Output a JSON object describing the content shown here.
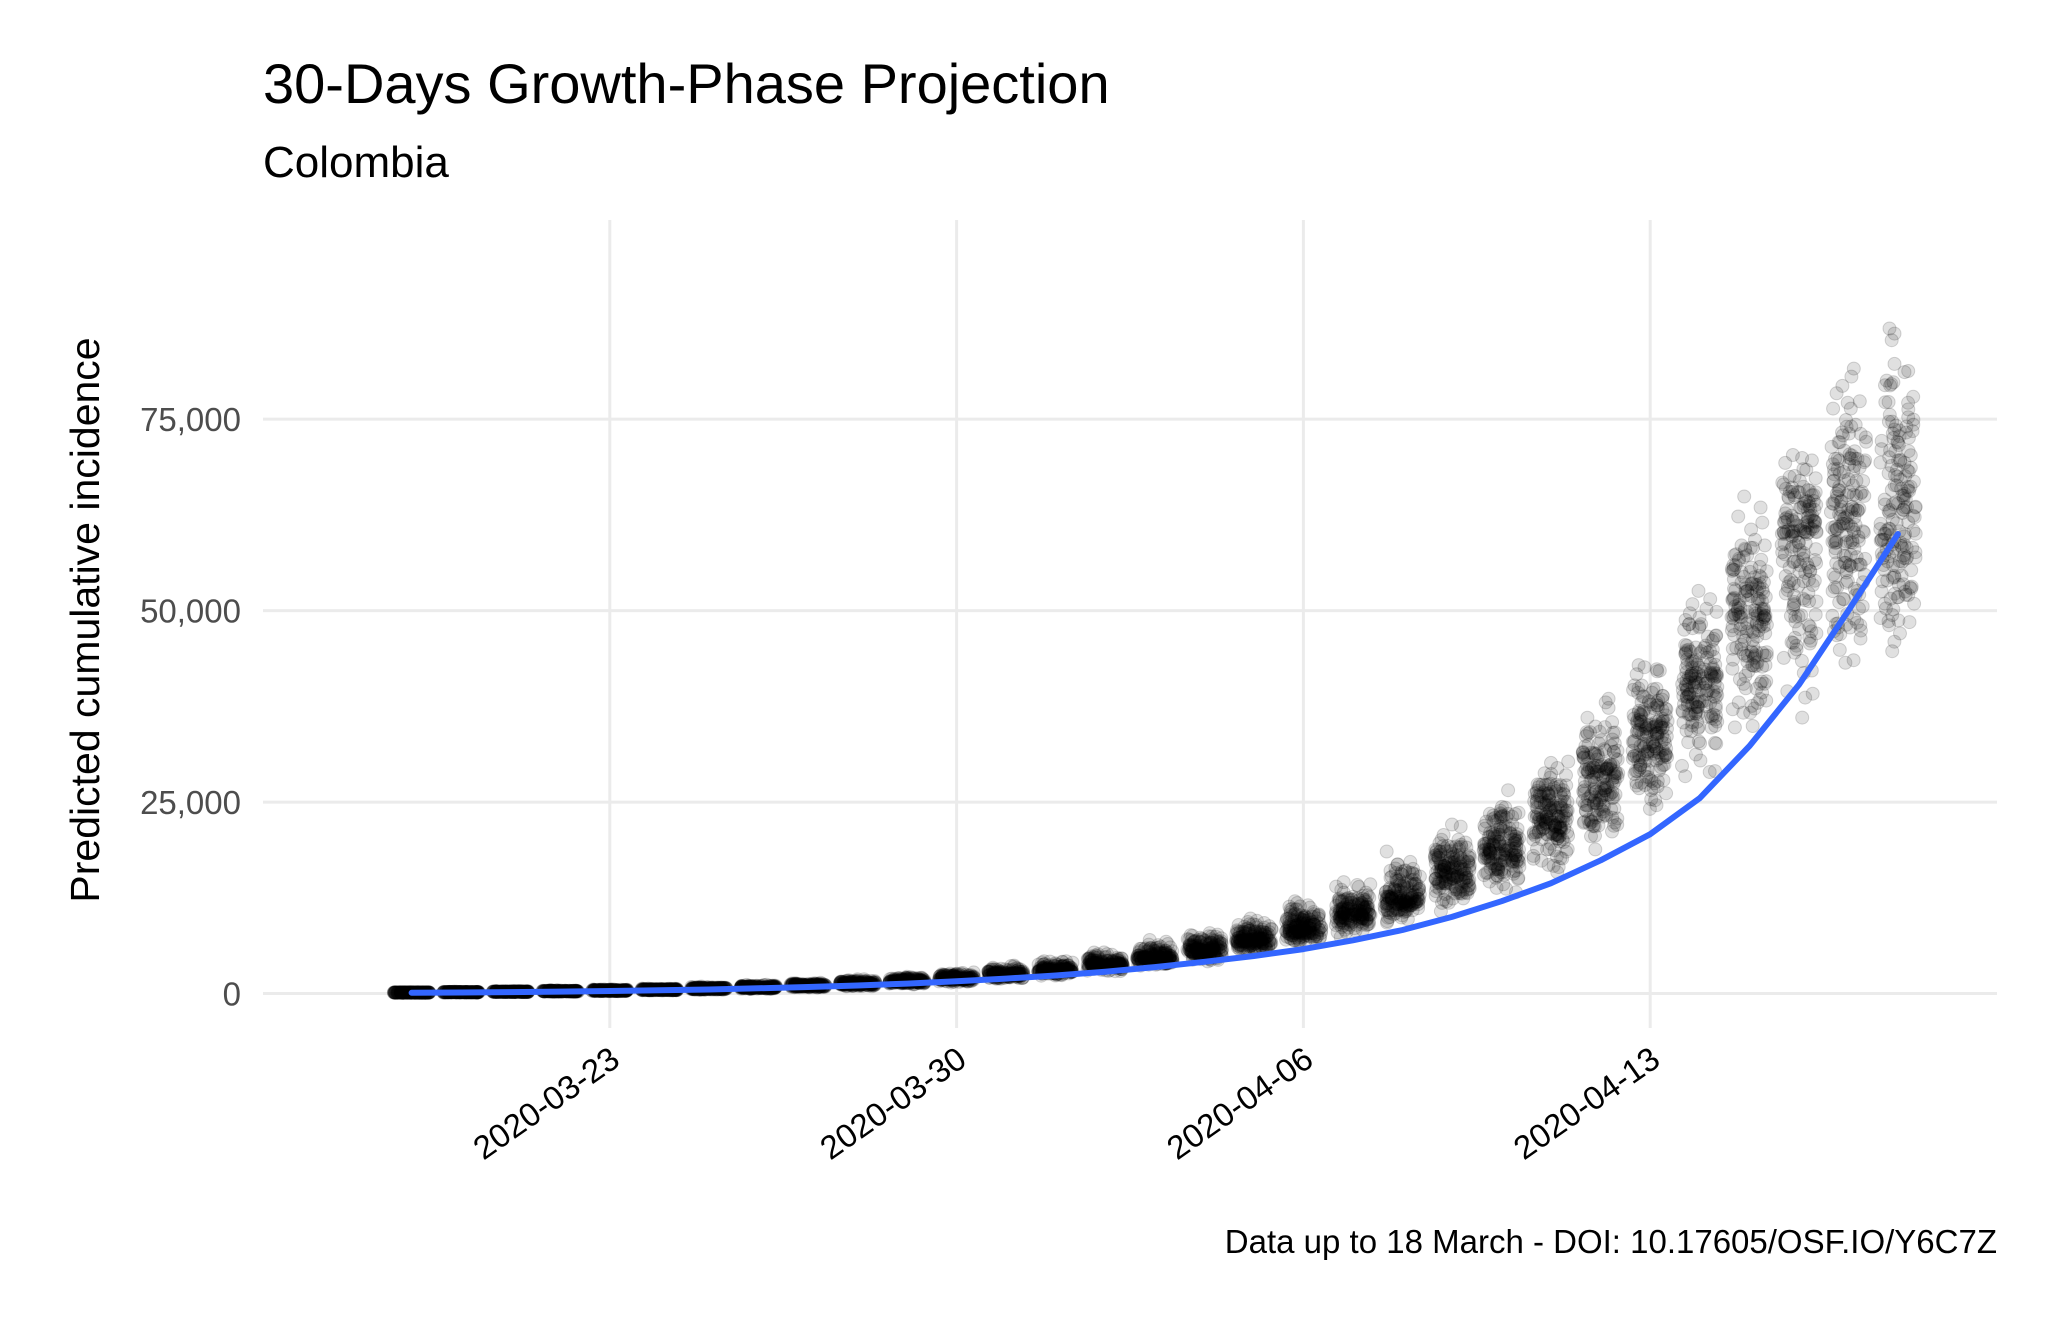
{
  "chart_data": {
    "type": "scatter",
    "title": "30-Days Growth-Phase Projection",
    "subtitle": "Colombia",
    "xlabel": "",
    "ylabel": "Predicted cumulative incidence",
    "caption": "Data up to 18 March - DOI: 10.17605/OSF.IO/Y6C7Z",
    "x_axis": {
      "kind": "date",
      "range": [
        "2020-03-16",
        "2020-04-20"
      ],
      "ticks": [
        {
          "value": "2020-03-23",
          "label": "2020-03-23"
        },
        {
          "value": "2020-03-30",
          "label": "2020-03-30"
        },
        {
          "value": "2020-04-06",
          "label": "2020-04-06"
        },
        {
          "value": "2020-04-13",
          "label": "2020-04-13"
        }
      ]
    },
    "y_axis": {
      "range": [
        -4500,
        101000
      ],
      "ticks": [
        {
          "value": 0,
          "label": "0"
        },
        {
          "value": 25000,
          "label": "25,000"
        },
        {
          "value": 50000,
          "label": "50,000"
        },
        {
          "value": 75000,
          "label": "75,000"
        }
      ]
    },
    "grid": true,
    "legend": "none",
    "series": [
      {
        "kind": "points",
        "color": "#000000",
        "opacity": 0.12,
        "dates": [
          "2020-03-19",
          "2020-03-20",
          "2020-03-21",
          "2020-03-22",
          "2020-03-23",
          "2020-03-24",
          "2020-03-25",
          "2020-03-26",
          "2020-03-27",
          "2020-03-28",
          "2020-03-29",
          "2020-03-30",
          "2020-03-31",
          "2020-04-01",
          "2020-04-02",
          "2020-04-03",
          "2020-04-04",
          "2020-04-05",
          "2020-04-06",
          "2020-04-07",
          "2020-04-08",
          "2020-04-09",
          "2020-04-10",
          "2020-04-11",
          "2020-04-12",
          "2020-04-13",
          "2020-04-14",
          "2020-04-15",
          "2020-04-16",
          "2020-04-17",
          "2020-04-18"
        ],
        "center": [
          128,
          175,
          230,
          300,
          390,
          500,
          640,
          810,
          1020,
          1280,
          1600,
          2000,
          2480,
          3070,
          3780,
          4660,
          5730,
          7020,
          8590,
          10500,
          12800,
          15600,
          19000,
          23100,
          28000,
          33900,
          40900,
          49500,
          60000,
          62000,
          63000
        ],
        "min": [
          100,
          120,
          170,
          220,
          280,
          360,
          450,
          560,
          700,
          880,
          1100,
          1350,
          1700,
          2100,
          2600,
          3200,
          4000,
          4900,
          5900,
          7100,
          8500,
          10000,
          12000,
          14500,
          17500,
          20500,
          24500,
          28500,
          33000,
          36000,
          39000
        ],
        "max": [
          160,
          240,
          330,
          430,
          560,
          720,
          920,
          1180,
          1500,
          1900,
          2400,
          3000,
          3700,
          4600,
          5700,
          7000,
          8600,
          10500,
          12800,
          15500,
          18700,
          22500,
          27000,
          32500,
          39000,
          46000,
          55000,
          65000,
          74000,
          88000,
          92000
        ]
      },
      {
        "kind": "line",
        "color": "#3366ff",
        "dates": [
          "2020-03-19",
          "2020-03-20",
          "2020-03-21",
          "2020-03-22",
          "2020-03-23",
          "2020-03-24",
          "2020-03-25",
          "2020-03-26",
          "2020-03-27",
          "2020-03-28",
          "2020-03-29",
          "2020-03-30",
          "2020-03-31",
          "2020-04-01",
          "2020-04-02",
          "2020-04-03",
          "2020-04-04",
          "2020-04-05",
          "2020-04-06",
          "2020-04-07",
          "2020-04-08",
          "2020-04-09",
          "2020-04-10",
          "2020-04-11",
          "2020-04-12",
          "2020-04-13",
          "2020-04-14",
          "2020-04-15",
          "2020-04-16",
          "2020-04-17",
          "2020-04-18"
        ],
        "values": [
          100,
          130,
          190,
          250,
          330,
          420,
          530,
          680,
          850,
          1050,
          1300,
          1600,
          1950,
          2350,
          2850,
          3450,
          4150,
          4900,
          5800,
          6950,
          8300,
          10000,
          12050,
          14400,
          17400,
          20800,
          25500,
          32300,
          40300,
          50000,
          60000
        ]
      }
    ]
  }
}
